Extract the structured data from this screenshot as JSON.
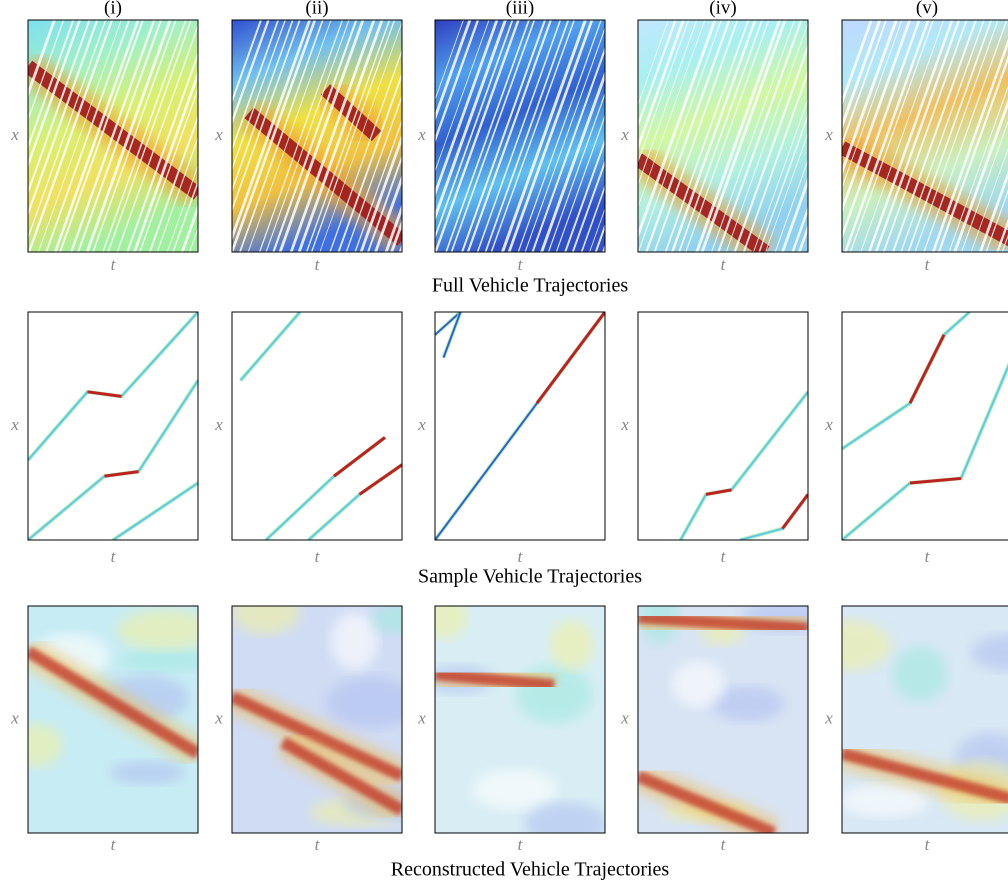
{
  "columns": [
    "(i)",
    "(ii)",
    "(iii)",
    "(iv)",
    "(v)"
  ],
  "rows": [
    {
      "caption": "Full Vehicle Trajectories",
      "panels": [
        {
          "ylabel": "x",
          "xlabel": "t"
        },
        {
          "ylabel": "x",
          "xlabel": "t"
        },
        {
          "ylabel": "x",
          "xlabel": "t"
        },
        {
          "ylabel": "x",
          "xlabel": "t"
        },
        {
          "ylabel": "x",
          "xlabel": "t"
        }
      ]
    },
    {
      "caption": "Sample Vehicle Trajectories",
      "panels": [
        {
          "ylabel": "x",
          "xlabel": "t"
        },
        {
          "ylabel": "x",
          "xlabel": "t"
        },
        {
          "ylabel": "x",
          "xlabel": "t"
        },
        {
          "ylabel": "x",
          "xlabel": "t"
        },
        {
          "ylabel": "x",
          "xlabel": "t"
        }
      ]
    },
    {
      "caption": "Reconstructed Vehicle Trajectories",
      "panels": [
        {
          "ylabel": "x",
          "xlabel": "t"
        },
        {
          "ylabel": "x",
          "xlabel": "t"
        },
        {
          "ylabel": "x",
          "xlabel": "t"
        },
        {
          "ylabel": "x",
          "xlabel": "t"
        },
        {
          "ylabel": "x",
          "xlabel": "t"
        }
      ]
    }
  ]
}
